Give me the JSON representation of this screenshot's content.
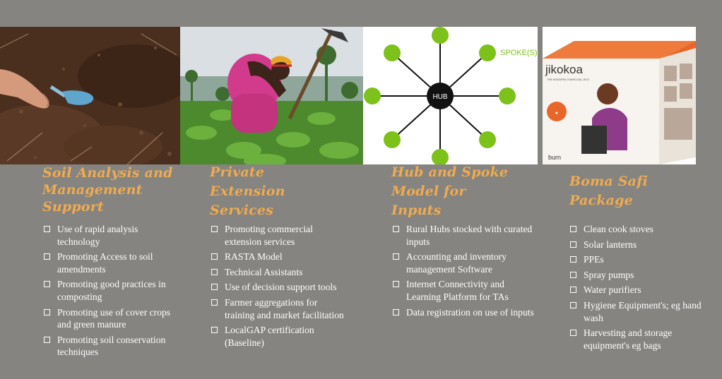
{
  "columns": [
    {
      "title_lines": [
        "Soil Analysis and",
        "Management",
        "Support"
      ],
      "bullets": [
        "Use of rapid analysis technology",
        "Promoting Access to soil amendments",
        "Promoting good practices in composting",
        "Promoting use of cover crops and green manure",
        "Promoting soil conservation techniques"
      ]
    },
    {
      "title_lines": [
        "Private",
        "Extension",
        "Services"
      ],
      "bullets": [
        "Promoting commercial extension services",
        "RASTA Model",
        "Technical Assistants",
        "Use of decision  support tools",
        "Farmer aggregations for training and market facilitation",
        "LocalGAP certification (Baseline)"
      ]
    },
    {
      "title_lines": [
        "Hub and Spoke",
        "Model for",
        "Inputs"
      ],
      "bullets": [
        "Rural Hubs stocked with curated inputs",
        "Accounting and inventory management Software",
        "Internet Connectivity and Learning Platform for TAs",
        "Data registration on use of inputs"
      ]
    },
    {
      "title_lines": [
        "Boma Safi",
        "Package"
      ],
      "bullets": [
        "Clean cook stoves",
        "Solar lanterns",
        "PPEs",
        "Spray pumps",
        "Water purifiers",
        "Hygiene Equipment's; eg hand wash",
        "Harvesting and storage equipment's eg  bags"
      ]
    }
  ],
  "diagram": {
    "hub_label": "HUB",
    "spoke_label": "SPOKE(S)"
  },
  "package_box": {
    "brand": "jikokoa",
    "tagline": "THE MODERN CHARCOAL JIKO",
    "maker": "burn"
  },
  "colors": {
    "title": "#f0ab4f",
    "background": "#858480",
    "node": "#7dc11b",
    "box_orange": "#e8662a"
  }
}
